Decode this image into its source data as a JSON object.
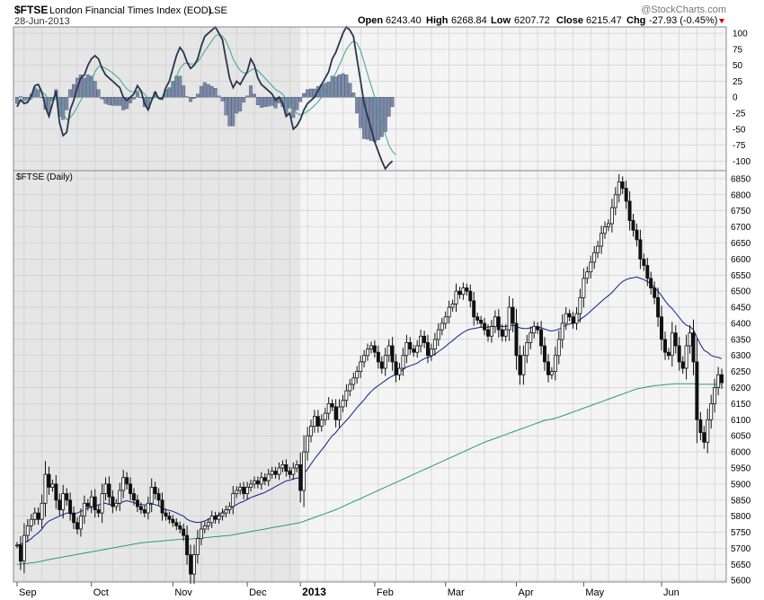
{
  "header": {
    "symbol": "$FTSE",
    "name": "London Financial Times Index (EOD)",
    "exchange": "LSE",
    "date": "28-Jun-2013",
    "open_label": "Open",
    "open": "6243.40",
    "high_label": "High",
    "high": "6268.84",
    "low_label": "Low",
    "low": "6207.72",
    "close_label": "Close",
    "close": "6215.47",
    "chg_label": "Chg",
    "chg": "-27.93 (-0.45%)",
    "chg_color": "#cc0000",
    "watermark": "@StockCharts.com"
  },
  "colors": {
    "panel_bg": "#f4f4f4",
    "shade_bg": "#e6e6e6",
    "grid": "#c8c8c8",
    "price": "#111111",
    "ma_short": "#1a1a8c",
    "ma_long": "#2a9a7a",
    "macd": "#2a3450",
    "signal": "#3aa58c",
    "hist": "#7d8aa8"
  },
  "chart_data": [
    {
      "type": "line",
      "panel": "macd",
      "ylim": [
        -115,
        110
      ],
      "yticks": [
        100,
        75,
        50,
        25,
        0,
        -25,
        -50,
        -75,
        -100
      ],
      "series": [
        {
          "values": [
            -15,
            -4,
            -10,
            -8,
            2,
            18,
            20,
            8,
            -15,
            -30,
            -10,
            10,
            -40,
            -60,
            -55,
            -20,
            -5,
            15,
            30,
            35,
            50,
            60,
            65,
            60,
            45,
            35,
            30,
            25,
            20,
            15,
            0,
            -5,
            0,
            5,
            18,
            10,
            -10,
            -20,
            -5,
            8,
            -2,
            -3,
            15,
            25,
            45,
            65,
            78,
            70,
            55,
            45,
            50,
            60,
            80,
            95,
            100,
            105,
            110,
            100,
            90,
            60,
            30,
            15,
            25,
            20,
            30,
            40,
            60,
            50,
            30,
            20,
            15,
            10,
            5,
            -5,
            0,
            -10,
            -30,
            -25,
            -50,
            -45,
            -35,
            -20,
            -10,
            -5,
            0,
            10,
            20,
            30,
            40,
            60,
            70,
            85,
            100,
            110,
            105,
            95,
            60,
            25,
            -10,
            -30,
            -50,
            -70,
            -85,
            -100,
            -112,
            -105,
            -100
          ]
        },
        {
          "values": [
            -5,
            -5,
            -6,
            -5,
            -3,
            3,
            8,
            8,
            4,
            -5,
            -6,
            -2,
            -10,
            -25,
            -35,
            -32,
            -25,
            -15,
            -5,
            5,
            15,
            27,
            40,
            48,
            48,
            45,
            42,
            38,
            33,
            28,
            20,
            13,
            9,
            8,
            10,
            10,
            5,
            -2,
            -3,
            0,
            -1,
            -2,
            3,
            10,
            20,
            32,
            45,
            52,
            54,
            52,
            52,
            55,
            63,
            72,
            80,
            88,
            96,
            98,
            96,
            88,
            75,
            60,
            50,
            42,
            38,
            38,
            42,
            45,
            42,
            36,
            30,
            24,
            18,
            12,
            9,
            5,
            -3,
            -8,
            -18,
            -25,
            -28,
            -26,
            -22,
            -18,
            -13,
            -7,
            0,
            8,
            16,
            27,
            38,
            50,
            63,
            75,
            83,
            88,
            85,
            73,
            55,
            36,
            18,
            0,
            -18,
            -38,
            -58,
            -75,
            -85,
            -90
          ]
        }
      ]
    },
    {
      "type": "line",
      "panel": "price",
      "title": "$FTSE (Daily)",
      "ylim": [
        5595,
        6875
      ],
      "yticks": [
        6850,
        6800,
        6750,
        6700,
        6650,
        6600,
        6550,
        6500,
        6450,
        6400,
        6350,
        6300,
        6250,
        6200,
        6150,
        6100,
        6050,
        6000,
        5950,
        5900,
        5850,
        5800,
        5750,
        5700,
        5650,
        5600
      ],
      "xticks": [
        {
          "label": "Sep",
          "bar": 0
        },
        {
          "label": "Oct",
          "bar": 21
        },
        {
          "label": "Nov",
          "bar": 44
        },
        {
          "label": "Dec",
          "bar": 65
        },
        {
          "label": "2013",
          "bar": 80
        },
        {
          "label": "Feb",
          "bar": 101
        },
        {
          "label": "Mar",
          "bar": 121
        },
        {
          "label": "Apr",
          "bar": 141
        },
        {
          "label": "May",
          "bar": 160
        },
        {
          "label": "Jun",
          "bar": 182
        }
      ],
      "shade_until_bar": 80,
      "close": [
        5710,
        5660,
        5740,
        5770,
        5790,
        5810,
        5790,
        5840,
        5930,
        5890,
        5900,
        5850,
        5820,
        5870,
        5850,
        5810,
        5780,
        5760,
        5800,
        5840,
        5830,
        5860,
        5820,
        5810,
        5870,
        5900,
        5860,
        5830,
        5840,
        5880,
        5920,
        5900,
        5870,
        5850,
        5830,
        5820,
        5810,
        5840,
        5890,
        5870,
        5850,
        5810,
        5800,
        5790,
        5780,
        5770,
        5760,
        5740,
        5680,
        5620,
        5680,
        5730,
        5760,
        5770,
        5780,
        5800,
        5790,
        5800,
        5810,
        5820,
        5830,
        5870,
        5880,
        5890,
        5870,
        5890,
        5900,
        5910,
        5900,
        5920,
        5910,
        5930,
        5940,
        5930,
        5950,
        5960,
        5940,
        5930,
        5950,
        5960,
        5880,
        6000,
        6050,
        6080,
        6110,
        6080,
        6100,
        6120,
        6150,
        6140,
        6100,
        6140,
        6160,
        6190,
        6210,
        6230,
        6250,
        6280,
        6300,
        6320,
        6330,
        6310,
        6280,
        6260,
        6300,
        6330,
        6280,
        6240,
        6260,
        6300,
        6340,
        6320,
        6310,
        6330,
        6360,
        6340,
        6300,
        6320,
        6350,
        6380,
        6400,
        6420,
        6450,
        6460,
        6500,
        6490,
        6510,
        6500,
        6470,
        6420,
        6410,
        6400,
        6380,
        6360,
        6390,
        6420,
        6380,
        6360,
        6380,
        6450,
        6400,
        6300,
        6240,
        6300,
        6340,
        6370,
        6390,
        6380,
        6330,
        6280,
        6240,
        6250,
        6300,
        6350,
        6400,
        6430,
        6420,
        6400,
        6430,
        6480,
        6540,
        6560,
        6590,
        6620,
        6640,
        6680,
        6700,
        6710,
        6760,
        6800,
        6840,
        6820,
        6780,
        6720,
        6690,
        6660,
        6600,
        6580,
        6540,
        6510,
        6480,
        6420,
        6350,
        6310,
        6300,
        6370,
        6330,
        6280,
        6260,
        6330,
        6370,
        6280,
        6100,
        6060,
        6030,
        6100,
        6150,
        6200,
        6240,
        6215
      ],
      "series": [
        {
          "values": [
            5710,
            5712,
            5718,
            5722,
            5730,
            5740,
            5748,
            5760,
            5775,
            5785,
            5790,
            5795,
            5800,
            5805,
            5810,
            5808,
            5805,
            5810,
            5815,
            5820,
            5825,
            5828,
            5832,
            5835,
            5840,
            5840,
            5836,
            5835,
            5838,
            5840,
            5845,
            5848,
            5845,
            5842,
            5838,
            5836,
            5835,
            5836,
            5838,
            5836,
            5832,
            5825,
            5820,
            5818,
            5815,
            5810,
            5805,
            5800,
            5790,
            5785,
            5782,
            5780,
            5782,
            5785,
            5790,
            5795,
            5800,
            5805,
            5812,
            5818,
            5822,
            5830,
            5836,
            5842,
            5846,
            5852,
            5858,
            5862,
            5866,
            5870,
            5874,
            5880,
            5886,
            5892,
            5898,
            5904,
            5910,
            5912,
            5916,
            5918,
            5920,
            5932,
            5946,
            5962,
            5978,
            5992,
            6006,
            6020,
            6036,
            6050,
            6060,
            6074,
            6086,
            6098,
            6110,
            6124,
            6138,
            6150,
            6162,
            6176,
            6188,
            6198,
            6206,
            6214,
            6222,
            6230,
            6236,
            6240,
            6248,
            6256,
            6264,
            6268,
            6272,
            6276,
            6284,
            6290,
            6294,
            6298,
            6304,
            6312,
            6320,
            6328,
            6338,
            6346,
            6356,
            6364,
            6372,
            6378,
            6382,
            6384,
            6386,
            6388,
            6388,
            6388,
            6390,
            6392,
            6392,
            6390,
            6390,
            6394,
            6394,
            6390,
            6386,
            6384,
            6384,
            6386,
            6388,
            6388,
            6386,
            6382,
            6378,
            6376,
            6378,
            6382,
            6388,
            6394,
            6398,
            6400,
            6404,
            6412,
            6420,
            6428,
            6438,
            6448,
            6458,
            6468,
            6478,
            6486,
            6496,
            6508,
            6520,
            6530,
            6536,
            6540,
            6542,
            6544,
            6540,
            6536,
            6530,
            6522,
            6512,
            6500,
            6486,
            6470,
            6456,
            6446,
            6432,
            6418,
            6404,
            6394,
            6390,
            6380,
            6356,
            6334,
            6316,
            6310,
            6300,
            6296,
            6294,
            6290
          ]
        },
        {
          "values": [
            5650,
            5651,
            5652,
            5653,
            5655,
            5656,
            5658,
            5660,
            5663,
            5665,
            5667,
            5669,
            5671,
            5673,
            5675,
            5677,
            5679,
            5681,
            5683,
            5685,
            5687,
            5689,
            5691,
            5693,
            5695,
            5697,
            5699,
            5701,
            5703,
            5705,
            5707,
            5709,
            5711,
            5713,
            5715,
            5717,
            5718,
            5719,
            5720,
            5721,
            5722,
            5723,
            5724,
            5725,
            5726,
            5727,
            5728,
            5729,
            5729,
            5729,
            5730,
            5731,
            5732,
            5733,
            5734,
            5735,
            5736,
            5737,
            5738,
            5739,
            5740,
            5742,
            5744,
            5746,
            5748,
            5750,
            5752,
            5754,
            5756,
            5758,
            5760,
            5762,
            5764,
            5766,
            5768,
            5770,
            5772,
            5774,
            5776,
            5778,
            5780,
            5784,
            5788,
            5792,
            5796,
            5800,
            5804,
            5808,
            5812,
            5816,
            5820,
            5825,
            5830,
            5835,
            5840,
            5845,
            5850,
            5855,
            5860,
            5865,
            5870,
            5875,
            5880,
            5885,
            5890,
            5895,
            5900,
            5905,
            5910,
            5915,
            5920,
            5925,
            5930,
            5935,
            5940,
            5945,
            5950,
            5955,
            5960,
            5965,
            5970,
            5975,
            5980,
            5985,
            5990,
            5995,
            6000,
            6005,
            6010,
            6015,
            6020,
            6025,
            6030,
            6034,
            6038,
            6042,
            6046,
            6050,
            6054,
            6058,
            6062,
            6066,
            6070,
            6074,
            6078,
            6082,
            6086,
            6090,
            6094,
            6098,
            6100,
            6102,
            6105,
            6108,
            6112,
            6116,
            6120,
            6124,
            6128,
            6132,
            6136,
            6140,
            6144,
            6148,
            6152,
            6156,
            6160,
            6164,
            6168,
            6172,
            6176,
            6180,
            6184,
            6188,
            6192,
            6196,
            6198,
            6200,
            6202,
            6204,
            6206,
            6207,
            6208,
            6209,
            6210,
            6211,
            6212,
            6212,
            6212,
            6212,
            6212,
            6212,
            6211,
            6210,
            6210,
            6210,
            6210,
            6210,
            6210,
            6210
          ]
        }
      ]
    }
  ]
}
